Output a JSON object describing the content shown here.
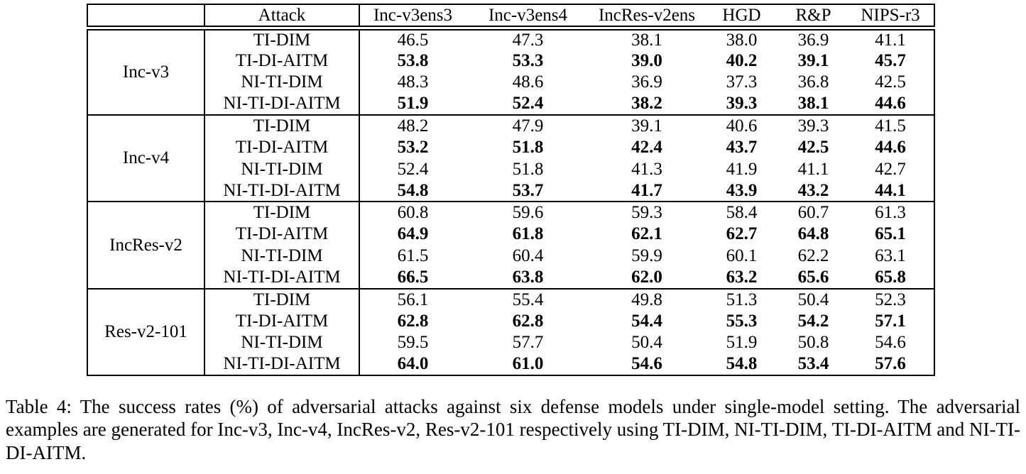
{
  "table": {
    "header": {
      "row_label_col": "",
      "attack_col": "Attack",
      "model_cols": [
        "Inc-v3ens3",
        "Inc-v3ens4",
        "IncRes-v2ens",
        "HGD",
        "R&P",
        "NIPS-r3"
      ]
    },
    "groups": [
      {
        "model": "Inc-v3",
        "rows": [
          {
            "attack": "TI-DIM",
            "bold": false,
            "values": [
              "46.5",
              "47.3",
              "38.1",
              "38.0",
              "36.9",
              "41.1"
            ]
          },
          {
            "attack": "TI-DI-AITM",
            "bold": true,
            "values": [
              "53.8",
              "53.3",
              "39.0",
              "40.2",
              "39.1",
              "45.7"
            ]
          },
          {
            "attack": "NI-TI-DIM",
            "bold": false,
            "values": [
              "48.3",
              "48.6",
              "36.9",
              "37.3",
              "36.8",
              "42.5"
            ]
          },
          {
            "attack": "NI-TI-DI-AITM",
            "bold": true,
            "values": [
              "51.9",
              "52.4",
              "38.2",
              "39.3",
              "38.1",
              "44.6"
            ]
          }
        ]
      },
      {
        "model": "Inc-v4",
        "rows": [
          {
            "attack": "TI-DIM",
            "bold": false,
            "values": [
              "48.2",
              "47.9",
              "39.1",
              "40.6",
              "39.3",
              "41.5"
            ]
          },
          {
            "attack": "TI-DI-AITM",
            "bold": true,
            "values": [
              "53.2",
              "51.8",
              "42.4",
              "43.7",
              "42.5",
              "44.6"
            ]
          },
          {
            "attack": "NI-TI-DIM",
            "bold": false,
            "values": [
              "52.4",
              "51.8",
              "41.3",
              "41.9",
              "41.1",
              "42.7"
            ]
          },
          {
            "attack": "NI-TI-DI-AITM",
            "bold": true,
            "values": [
              "54.8",
              "53.7",
              "41.7",
              "43.9",
              "43.2",
              "44.1"
            ]
          }
        ]
      },
      {
        "model": "IncRes-v2",
        "rows": [
          {
            "attack": "TI-DIM",
            "bold": false,
            "values": [
              "60.8",
              "59.6",
              "59.3",
              "58.4",
              "60.7",
              "61.3"
            ]
          },
          {
            "attack": "TI-DI-AITM",
            "bold": true,
            "values": [
              "64.9",
              "61.8",
              "62.1",
              "62.7",
              "64.8",
              "65.1"
            ]
          },
          {
            "attack": "NI-TI-DIM",
            "bold": false,
            "values": [
              "61.5",
              "60.4",
              "59.9",
              "60.1",
              "62.2",
              "63.1"
            ]
          },
          {
            "attack": "NI-TI-DI-AITM",
            "bold": true,
            "values": [
              "66.5",
              "63.8",
              "62.0",
              "63.2",
              "65.6",
              "65.8"
            ]
          }
        ]
      },
      {
        "model": "Res-v2-101",
        "rows": [
          {
            "attack": "TI-DIM",
            "bold": false,
            "values": [
              "56.1",
              "55.4",
              "49.8",
              "51.3",
              "50.4",
              "52.3"
            ]
          },
          {
            "attack": "TI-DI-AITM",
            "bold": true,
            "values": [
              "62.8",
              "62.8",
              "54.4",
              "55.3",
              "54.2",
              "57.1"
            ]
          },
          {
            "attack": "NI-TI-DIM",
            "bold": false,
            "values": [
              "59.5",
              "57.7",
              "50.4",
              "51.9",
              "50.8",
              "54.6"
            ]
          },
          {
            "attack": "NI-TI-DI-AITM",
            "bold": true,
            "values": [
              "64.0",
              "61.0",
              "54.6",
              "54.8",
              "53.4",
              "57.6"
            ]
          }
        ]
      }
    ]
  },
  "caption": "Table 4: The success rates (%) of adversarial attacks against six defense models under single-model setting. The adversarial examples are generated for Inc-v3, Inc-v4, IncRes-v2, Res-v2-101 respectively using TI-DIM, NI-TI-DIM, TI-DI-AITM and NI-TI-DI-AITM."
}
